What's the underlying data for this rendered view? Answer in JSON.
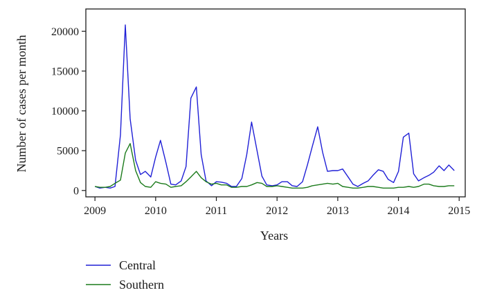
{
  "chart_data": {
    "type": "line",
    "xlabel": "Years",
    "ylabel": "Number of cases per month",
    "xlim": [
      2008.85,
      2015.1
    ],
    "ylim": [
      -800,
      22800
    ],
    "x_ticks": [
      2009,
      2010,
      2011,
      2012,
      2013,
      2014,
      2015
    ],
    "y_ticks": [
      0,
      5000,
      10000,
      15000,
      20000
    ],
    "grid": false,
    "legend_position": "bottom-left",
    "series": [
      {
        "name": "Central",
        "color": "#1f1fd6",
        "points": [
          [
            2009.0,
            500
          ],
          [
            2009.08,
            300
          ],
          [
            2009.17,
            400
          ],
          [
            2009.25,
            300
          ],
          [
            2009.33,
            500
          ],
          [
            2009.42,
            7000
          ],
          [
            2009.5,
            20800
          ],
          [
            2009.58,
            9000
          ],
          [
            2009.67,
            3800
          ],
          [
            2009.75,
            2000
          ],
          [
            2009.83,
            2400
          ],
          [
            2009.92,
            1700
          ],
          [
            2010.0,
            4200
          ],
          [
            2010.08,
            6300
          ],
          [
            2010.17,
            3500
          ],
          [
            2010.25,
            800
          ],
          [
            2010.33,
            700
          ],
          [
            2010.42,
            1200
          ],
          [
            2010.5,
            3000
          ],
          [
            2010.58,
            11600
          ],
          [
            2010.67,
            13000
          ],
          [
            2010.75,
            4500
          ],
          [
            2010.83,
            1200
          ],
          [
            2010.92,
            600
          ],
          [
            2011.0,
            1100
          ],
          [
            2011.08,
            1050
          ],
          [
            2011.17,
            900
          ],
          [
            2011.25,
            500
          ],
          [
            2011.33,
            500
          ],
          [
            2011.42,
            1500
          ],
          [
            2011.5,
            4500
          ],
          [
            2011.58,
            8600
          ],
          [
            2011.67,
            5000
          ],
          [
            2011.75,
            1800
          ],
          [
            2011.83,
            700
          ],
          [
            2011.92,
            600
          ],
          [
            2012.0,
            700
          ],
          [
            2012.08,
            1100
          ],
          [
            2012.17,
            1100
          ],
          [
            2012.25,
            600
          ],
          [
            2012.33,
            500
          ],
          [
            2012.42,
            1100
          ],
          [
            2012.5,
            3200
          ],
          [
            2012.58,
            5500
          ],
          [
            2012.67,
            8000
          ],
          [
            2012.75,
            4800
          ],
          [
            2012.83,
            2400
          ],
          [
            2012.92,
            2500
          ],
          [
            2013.0,
            2500
          ],
          [
            2013.08,
            2700
          ],
          [
            2013.17,
            1700
          ],
          [
            2013.25,
            800
          ],
          [
            2013.33,
            500
          ],
          [
            2013.42,
            900
          ],
          [
            2013.5,
            1200
          ],
          [
            2013.58,
            1900
          ],
          [
            2013.67,
            2600
          ],
          [
            2013.75,
            2400
          ],
          [
            2013.83,
            1400
          ],
          [
            2013.92,
            1000
          ],
          [
            2014.0,
            2400
          ],
          [
            2014.08,
            6700
          ],
          [
            2014.17,
            7200
          ],
          [
            2014.25,
            2100
          ],
          [
            2014.33,
            1200
          ],
          [
            2014.42,
            1600
          ],
          [
            2014.5,
            1900
          ],
          [
            2014.58,
            2300
          ],
          [
            2014.67,
            3100
          ],
          [
            2014.75,
            2500
          ],
          [
            2014.83,
            3200
          ],
          [
            2014.92,
            2500
          ]
        ]
      },
      {
        "name": "Southern",
        "color": "#1a7a1a",
        "points": [
          [
            2009.0,
            500
          ],
          [
            2009.08,
            400
          ],
          [
            2009.17,
            400
          ],
          [
            2009.25,
            500
          ],
          [
            2009.33,
            900
          ],
          [
            2009.42,
            1300
          ],
          [
            2009.5,
            4700
          ],
          [
            2009.58,
            5900
          ],
          [
            2009.67,
            2500
          ],
          [
            2009.75,
            1000
          ],
          [
            2009.83,
            500
          ],
          [
            2009.92,
            400
          ],
          [
            2010.0,
            1100
          ],
          [
            2010.08,
            900
          ],
          [
            2010.17,
            800
          ],
          [
            2010.25,
            400
          ],
          [
            2010.33,
            500
          ],
          [
            2010.42,
            600
          ],
          [
            2010.5,
            1100
          ],
          [
            2010.58,
            1700
          ],
          [
            2010.67,
            2400
          ],
          [
            2010.75,
            1600
          ],
          [
            2010.83,
            1100
          ],
          [
            2010.92,
            800
          ],
          [
            2011.0,
            900
          ],
          [
            2011.08,
            700
          ],
          [
            2011.17,
            700
          ],
          [
            2011.25,
            400
          ],
          [
            2011.33,
            400
          ],
          [
            2011.42,
            500
          ],
          [
            2011.5,
            500
          ],
          [
            2011.58,
            700
          ],
          [
            2011.67,
            1000
          ],
          [
            2011.75,
            900
          ],
          [
            2011.83,
            500
          ],
          [
            2011.92,
            500
          ],
          [
            2012.0,
            600
          ],
          [
            2012.08,
            500
          ],
          [
            2012.17,
            400
          ],
          [
            2012.25,
            300
          ],
          [
            2012.33,
            300
          ],
          [
            2012.42,
            300
          ],
          [
            2012.5,
            400
          ],
          [
            2012.58,
            600
          ],
          [
            2012.67,
            700
          ],
          [
            2012.75,
            800
          ],
          [
            2012.83,
            900
          ],
          [
            2012.92,
            800
          ],
          [
            2013.0,
            900
          ],
          [
            2013.08,
            500
          ],
          [
            2013.17,
            400
          ],
          [
            2013.25,
            300
          ],
          [
            2013.33,
            300
          ],
          [
            2013.42,
            400
          ],
          [
            2013.5,
            500
          ],
          [
            2013.58,
            500
          ],
          [
            2013.67,
            400
          ],
          [
            2013.75,
            300
          ],
          [
            2013.83,
            300
          ],
          [
            2013.92,
            300
          ],
          [
            2014.0,
            400
          ],
          [
            2014.08,
            400
          ],
          [
            2014.17,
            500
          ],
          [
            2014.25,
            400
          ],
          [
            2014.33,
            500
          ],
          [
            2014.42,
            800
          ],
          [
            2014.5,
            800
          ],
          [
            2014.58,
            600
          ],
          [
            2014.67,
            500
          ],
          [
            2014.75,
            500
          ],
          [
            2014.83,
            600
          ],
          [
            2014.92,
            600
          ]
        ]
      }
    ]
  }
}
